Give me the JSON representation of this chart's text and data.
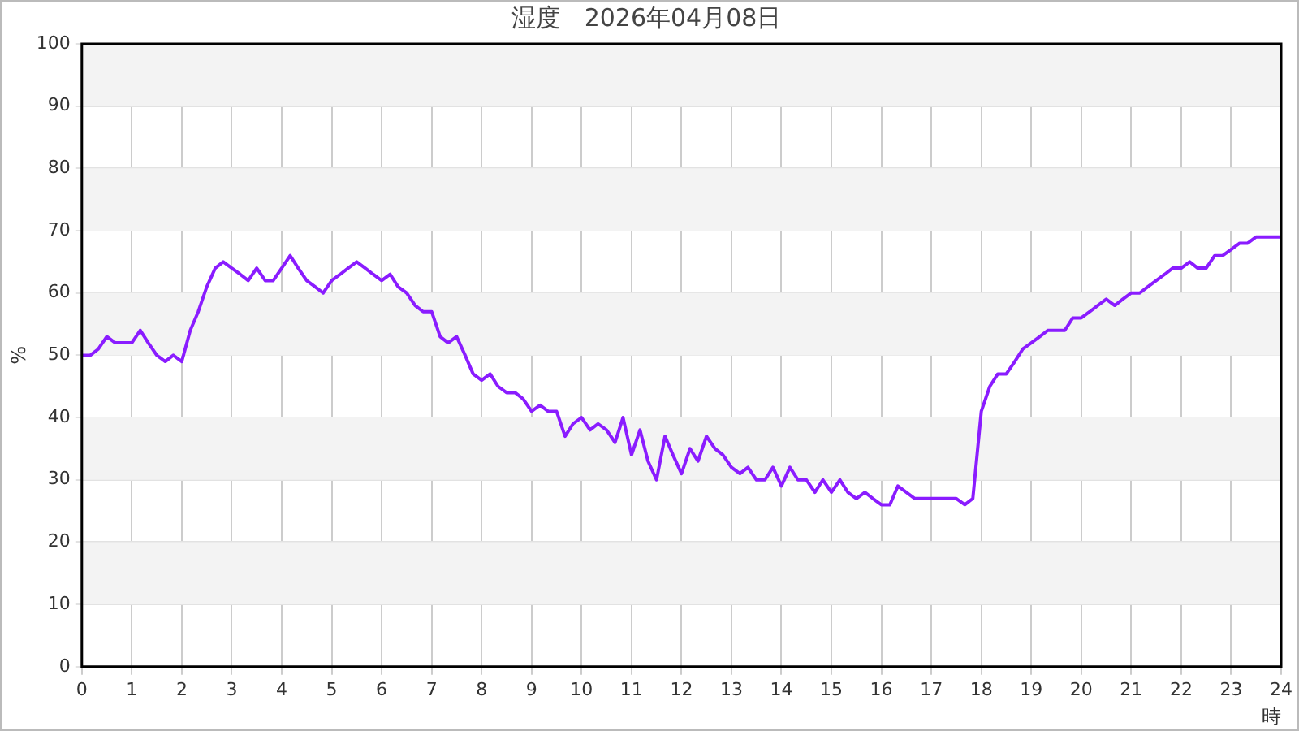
{
  "chart_data": {
    "type": "line",
    "title": "湿度　2026年04月08日",
    "xlabel": "時",
    "ylabel": "%",
    "x": [
      0,
      0.17,
      0.33,
      0.5,
      0.67,
      0.83,
      1,
      1.17,
      1.33,
      1.5,
      1.67,
      1.83,
      2,
      2.17,
      2.33,
      2.5,
      2.67,
      2.83,
      3,
      3.17,
      3.33,
      3.5,
      3.67,
      3.83,
      4,
      4.17,
      4.33,
      4.5,
      4.67,
      4.83,
      5,
      5.17,
      5.33,
      5.5,
      5.67,
      5.83,
      6,
      6.17,
      6.33,
      6.5,
      6.67,
      6.83,
      7,
      7.17,
      7.33,
      7.5,
      7.67,
      7.83,
      8,
      8.17,
      8.33,
      8.5,
      8.67,
      8.83,
      9,
      9.17,
      9.33,
      9.5,
      9.67,
      9.83,
      10,
      10.17,
      10.33,
      10.5,
      10.67,
      10.83,
      11,
      11.17,
      11.33,
      11.5,
      11.67,
      11.83,
      12,
      12.17,
      12.33,
      12.5,
      12.67,
      12.83,
      13,
      13.17,
      13.33,
      13.5,
      13.67,
      13.83,
      14,
      14.17,
      14.33,
      14.5,
      14.67,
      14.83,
      15,
      15.17,
      15.33,
      15.5,
      15.67,
      15.83,
      16,
      16.17,
      16.33,
      16.5,
      16.67,
      16.83,
      17,
      17.17,
      17.33,
      17.5,
      17.67,
      17.83,
      18,
      18.17,
      18.33,
      18.5,
      18.67,
      18.83,
      19,
      19.17,
      19.33,
      19.5,
      19.67,
      19.83,
      20,
      20.17,
      20.33,
      20.5,
      20.67,
      20.83,
      21,
      21.17,
      21.33,
      21.5,
      21.67,
      21.83,
      22,
      22.17,
      22.33,
      22.5,
      22.67,
      22.83,
      23,
      23.17,
      23.33,
      23.5,
      23.67,
      23.83,
      24
    ],
    "series": [
      {
        "color": "#8a1cff",
        "values": [
          50,
          50,
          51,
          53,
          52,
          52,
          52,
          54,
          52,
          50,
          49,
          50,
          49,
          54,
          57,
          61,
          64,
          65,
          64,
          63,
          62,
          64,
          62,
          62,
          64,
          66,
          64,
          62,
          61,
          60,
          62,
          63,
          64,
          65,
          64,
          63,
          62,
          63,
          61,
          60,
          58,
          57,
          57,
          53,
          52,
          53,
          50,
          47,
          46,
          47,
          45,
          44,
          44,
          43,
          41,
          42,
          41,
          41,
          37,
          39,
          40,
          38,
          39,
          38,
          36,
          40,
          34,
          38,
          33,
          30,
          37,
          34,
          31,
          35,
          33,
          37,
          35,
          34,
          32,
          31,
          32,
          30,
          30,
          32,
          29,
          32,
          30,
          30,
          28,
          30,
          28,
          30,
          28,
          27,
          28,
          27,
          26,
          26,
          29,
          28,
          27,
          27,
          27,
          27,
          27,
          27,
          26,
          27,
          41,
          45,
          47,
          47,
          49,
          51,
          52,
          53,
          54,
          54,
          54,
          56,
          56,
          57,
          58,
          59,
          58,
          59,
          60,
          60,
          61,
          62,
          63,
          64,
          64,
          65,
          64,
          64,
          66,
          66,
          67,
          68,
          68,
          69,
          69,
          69,
          69
        ]
      }
    ],
    "xlim": [
      0,
      24
    ],
    "xticks": [
      0,
      1,
      2,
      3,
      4,
      5,
      6,
      7,
      8,
      9,
      10,
      11,
      12,
      13,
      14,
      15,
      16,
      17,
      18,
      19,
      20,
      21,
      22,
      23,
      24
    ],
    "ylim": [
      0,
      100
    ],
    "yticks": [
      0,
      10,
      20,
      30,
      40,
      50,
      60,
      70,
      80,
      90,
      100
    ],
    "grid": true,
    "legend": false,
    "marker": "none",
    "line_style": "solid"
  }
}
